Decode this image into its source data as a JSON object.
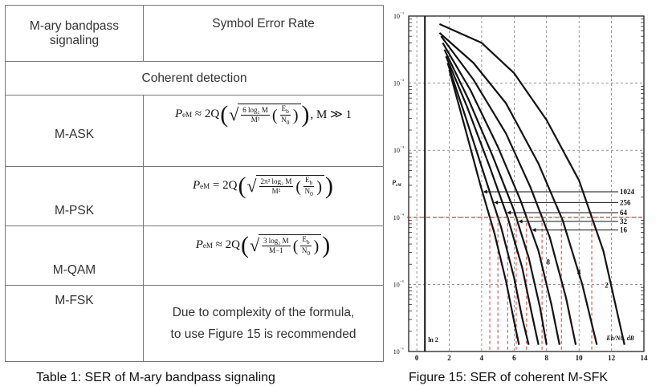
{
  "table": {
    "header_col1": "M-ary bandpass signaling",
    "header_col2": "Symbol Error Rate",
    "section": "Coherent detection",
    "rows": [
      {
        "name": "M-ASK",
        "formula_left": "P",
        "formula_sub": "eM",
        "formula_rel": "≈ 2Q",
        "num": "6 log₂ M",
        "den": "M²",
        "cond": ", M ≫ 1"
      },
      {
        "name": "M-PSK",
        "formula_left": "P",
        "formula_sub": "eM",
        "formula_rel": "= 2Q",
        "num": "2π² log₂ M",
        "den": "M²",
        "cond": ""
      },
      {
        "name": "M-QAM",
        "formula_left": "P",
        "formula_sub": "eM",
        "formula_rel": "≈ 2Q",
        "num": "3 log₂ M",
        "den": "M−1",
        "cond": ""
      },
      {
        "name": "M-FSK",
        "note": "Due to complexity of the formula, to use Figure 15 is recommended"
      }
    ],
    "eb": "E",
    "eb_sub": "b",
    "n0": "N",
    "n0_sub": "0"
  },
  "captions": {
    "table": "Table 1: SER of M-ary bandpass signaling",
    "figure": "Figure 15: SER of coherent M-SFK"
  },
  "chart_data": {
    "type": "line",
    "ylabel": "P_eM",
    "xlabel": "Eb/N0, dB",
    "x_ticks": [
      "0",
      "2",
      "4",
      "6",
      "8",
      "10",
      "12",
      "14"
    ],
    "y_ticks": [
      "10⁻⁶",
      "10⁻⁵",
      "10⁻⁴",
      "10⁻³",
      "10⁻²",
      "10⁻¹"
    ],
    "xlim": [
      -0.5,
      14
    ],
    "ylog_range": [
      -6,
      -1
    ],
    "ln2_label": "ln 2",
    "threshold": -4,
    "threshold_color": "#e02020",
    "legend_M": [
      "1024",
      "256",
      "64",
      "32",
      "16"
    ],
    "curve_labels": [
      {
        "text": "2",
        "x": 11.7,
        "y": -5.05
      },
      {
        "text": "4",
        "x": 10.0,
        "y": -4.85
      },
      {
        "text": "8",
        "x": 8.1,
        "y": -4.7
      }
    ],
    "series": [
      {
        "M": 2,
        "x": [
          1.4,
          4,
          6,
          8,
          10,
          11.5,
          12.8
        ],
        "y": [
          -1.12,
          -1.4,
          -1.85,
          -2.55,
          -3.45,
          -4.5,
          -5.9
        ]
      },
      {
        "M": 4,
        "x": [
          1.4,
          3.5,
          5.5,
          7.5,
          9,
          10.2,
          11.1
        ],
        "y": [
          -1.25,
          -1.7,
          -2.3,
          -3.2,
          -4.05,
          -5.0,
          -5.9
        ]
      },
      {
        "M": 8,
        "x": [
          1.5,
          3.5,
          5.5,
          7.0,
          8.2,
          9.2,
          9.8
        ],
        "y": [
          -1.3,
          -1.95,
          -2.75,
          -3.55,
          -4.3,
          -5.2,
          -5.9
        ]
      },
      {
        "M": 16,
        "x": [
          1.6,
          3.3,
          5.0,
          6.4,
          7.5,
          8.3,
          8.8
        ],
        "y": [
          -1.4,
          -2.1,
          -2.95,
          -3.75,
          -4.5,
          -5.3,
          -5.9
        ]
      },
      {
        "M": 32,
        "x": [
          1.7,
          3.2,
          4.7,
          6.0,
          6.9,
          7.6,
          8.0
        ],
        "y": [
          -1.5,
          -2.25,
          -3.1,
          -3.9,
          -4.6,
          -5.35,
          -5.9
        ]
      },
      {
        "M": 64,
        "x": [
          1.8,
          3.1,
          4.5,
          5.6,
          6.5,
          7.1,
          7.5
        ],
        "y": [
          -1.6,
          -2.35,
          -3.25,
          -4.0,
          -4.75,
          -5.45,
          -5.9
        ]
      },
      {
        "M": 256,
        "x": [
          1.9,
          3.0,
          4.2,
          5.2,
          6.0,
          6.5,
          6.9
        ],
        "y": [
          -1.7,
          -2.5,
          -3.4,
          -4.15,
          -4.9,
          -5.5,
          -5.9
        ]
      },
      {
        "M": 1024,
        "x": [
          2.0,
          2.9,
          3.9,
          4.8,
          5.5,
          6.0,
          6.3
        ],
        "y": [
          -1.8,
          -2.6,
          -3.5,
          -4.25,
          -4.95,
          -5.55,
          -5.9
        ]
      }
    ],
    "asymptote_x": 0.5
  }
}
